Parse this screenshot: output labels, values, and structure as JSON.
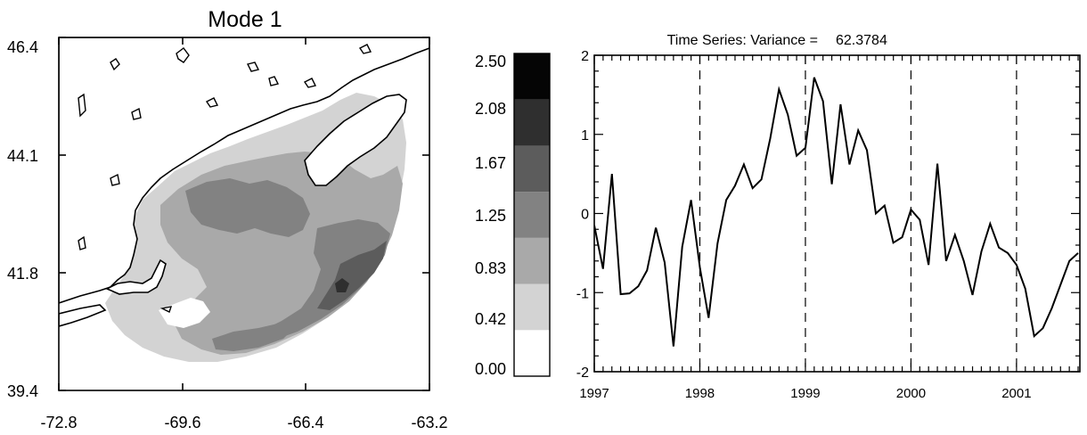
{
  "chart_data": [
    {
      "type": "heatmap",
      "title": "Mode 1",
      "xlabel": "",
      "ylabel": "",
      "xlim": [
        -72.8,
        -63.2
      ],
      "ylim": [
        39.4,
        46.4
      ],
      "x_ticks": [
        "-72.8",
        "-69.6",
        "-66.4",
        "-63.2"
      ],
      "y_ticks": [
        "46.4",
        "44.1",
        "41.8",
        "39.4"
      ],
      "colorbar": {
        "ticks": [
          "2.50",
          "2.08",
          "1.67",
          "1.25",
          "0.83",
          "0.42",
          "0.00"
        ],
        "colors": [
          "#ffffff",
          "#d3d3d3",
          "#a9a9a9",
          "#828282",
          "#5c5c5c",
          "#2f2f2f",
          "#050505"
        ]
      }
    },
    {
      "type": "line",
      "title": "Time Series: Variance =",
      "variance": "62.3784",
      "xlabel": "",
      "ylabel": "",
      "xlim": [
        1997.0,
        2001.6
      ],
      "ylim": [
        -2,
        2
      ],
      "x_ticks": [
        "1997",
        "1998",
        "1999",
        "2000",
        "2001"
      ],
      "y_ticks": [
        "2",
        "1",
        "0",
        "-1",
        "-2"
      ],
      "vlines": [
        1998,
        1999,
        2000,
        2001
      ],
      "series": [
        {
          "x": [
            1997.0,
            1997.083,
            1997.167,
            1997.25,
            1997.333,
            1997.417,
            1997.5,
            1997.583,
            1997.667,
            1997.75,
            1997.833,
            1997.917,
            1998.0,
            1998.083,
            1998.167,
            1998.25,
            1998.333,
            1998.417,
            1998.5,
            1998.583,
            1998.667,
            1998.75,
            1998.833,
            1998.917,
            1999.0,
            1999.083,
            1999.167,
            1999.25,
            1999.333,
            1999.417,
            1999.5,
            1999.583,
            1999.667,
            1999.75,
            1999.833,
            1999.917,
            2000.0,
            2000.083,
            2000.167,
            2000.25,
            2000.333,
            2000.417,
            2000.5,
            2000.583,
            2000.667,
            2000.75,
            2000.833,
            2000.917,
            2001.0,
            2001.083,
            2001.167,
            2001.25,
            2001.333,
            2001.417,
            2001.5,
            2001.583
          ],
          "y": [
            -0.15,
            -0.7,
            0.5,
            -1.02,
            -1.01,
            -0.92,
            -0.72,
            -0.18,
            -0.62,
            -1.68,
            -0.42,
            0.17,
            -0.68,
            -1.32,
            -0.38,
            0.17,
            0.35,
            0.62,
            0.32,
            0.43,
            0.95,
            1.57,
            1.25,
            0.73,
            0.83,
            1.72,
            1.42,
            0.37,
            1.38,
            0.62,
            1.05,
            0.8,
            0.0,
            0.1,
            -0.37,
            -0.3,
            0.05,
            -0.08,
            -0.65,
            0.63,
            -0.6,
            -0.27,
            -0.6,
            -1.03,
            -0.48,
            -0.13,
            -0.43,
            -0.5,
            -0.65,
            -0.95,
            -1.55,
            -1.45,
            -1.2,
            -0.9,
            -0.6,
            -0.5
          ]
        }
      ]
    }
  ]
}
